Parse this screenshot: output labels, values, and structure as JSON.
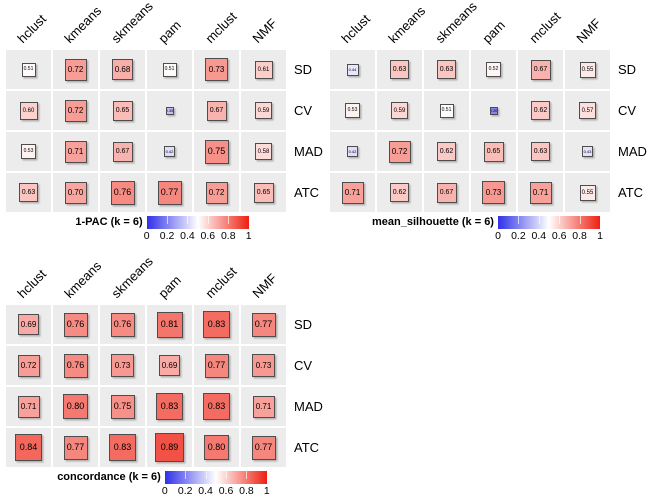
{
  "figure": {
    "columns": [
      "hclust",
      "kmeans",
      "skmeans",
      "pam",
      "mclust",
      "NMF"
    ],
    "rows": [
      "SD",
      "CV",
      "MAD",
      "ATC"
    ],
    "panels": [
      {
        "id": "1-pac",
        "title": "1-PAC (k = 6)",
        "grid_position": "top-left",
        "values": [
          [
            0.51,
            0.72,
            0.68,
            0.51,
            0.73,
            0.61
          ],
          [
            0.6,
            0.72,
            0.65,
            0.35,
            0.67,
            0.59
          ],
          [
            0.53,
            0.71,
            0.67,
            0.42,
            0.75,
            0.58
          ],
          [
            0.63,
            0.7,
            0.76,
            0.77,
            0.72,
            0.65
          ]
        ]
      },
      {
        "id": "mean-silhouette",
        "title": "mean_silhouette (k = 6)",
        "grid_position": "top-right",
        "values": [
          [
            0.44,
            0.63,
            0.63,
            0.52,
            0.67,
            0.55
          ],
          [
            0.53,
            0.59,
            0.51,
            0.2,
            0.62,
            0.57
          ],
          [
            0.42,
            0.72,
            0.62,
            0.65,
            0.63,
            0.43
          ],
          [
            0.71,
            0.62,
            0.67,
            0.73,
            0.71,
            0.55
          ]
        ]
      },
      {
        "id": "concordance",
        "title": "concordance (k = 6)",
        "grid_position": "bottom-left",
        "values": [
          [
            0.69,
            0.76,
            0.76,
            0.81,
            0.83,
            0.77
          ],
          [
            0.72,
            0.76,
            0.73,
            0.69,
            0.77,
            0.73
          ],
          [
            0.71,
            0.8,
            0.75,
            0.83,
            0.83,
            0.71
          ],
          [
            0.84,
            0.77,
            0.83,
            0.89,
            0.8,
            0.77
          ]
        ]
      }
    ],
    "legend": {
      "tick_labels": [
        "0",
        "0.2",
        "0.4",
        "0.6",
        "0.8",
        "1"
      ],
      "range": [
        0,
        1
      ]
    },
    "colors": {
      "scale_low": "#3030e9",
      "scale_mid": "#ffffff",
      "scale_high": "#ee2010",
      "cell_bg": "#ececec",
      "box_border": "#4d4d4d",
      "text": "#000000",
      "background": "#ffffff"
    }
  },
  "chart_data": [
    {
      "type": "heatmap",
      "title": "1-PAC (k = 6)",
      "x": [
        "hclust",
        "kmeans",
        "skmeans",
        "pam",
        "mclust",
        "NMF"
      ],
      "y": [
        "SD",
        "CV",
        "MAD",
        "ATC"
      ],
      "values": [
        [
          0.51,
          0.72,
          0.68,
          0.51,
          0.73,
          0.61
        ],
        [
          0.6,
          0.72,
          0.65,
          0.35,
          0.67,
          0.59
        ],
        [
          0.53,
          0.71,
          0.67,
          0.42,
          0.75,
          0.58
        ],
        [
          0.63,
          0.7,
          0.76,
          0.77,
          0.72,
          0.65
        ]
      ],
      "colorscale": {
        "0": "blue",
        "0.5": "white",
        "1": "red"
      },
      "value_range": [
        0,
        1
      ],
      "legend_ticks": [
        0,
        0.2,
        0.4,
        0.6,
        0.8,
        1
      ],
      "legend_position": "bottom",
      "note": "square size and color proportional to value"
    },
    {
      "type": "heatmap",
      "title": "mean_silhouette (k = 6)",
      "x": [
        "hclust",
        "kmeans",
        "skmeans",
        "pam",
        "mclust",
        "NMF"
      ],
      "y": [
        "SD",
        "CV",
        "MAD",
        "ATC"
      ],
      "values": [
        [
          0.44,
          0.63,
          0.63,
          0.52,
          0.67,
          0.55
        ],
        [
          0.53,
          0.59,
          0.51,
          0.2,
          0.62,
          0.57
        ],
        [
          0.42,
          0.72,
          0.62,
          0.65,
          0.63,
          0.43
        ],
        [
          0.71,
          0.62,
          0.67,
          0.73,
          0.71,
          0.55
        ]
      ],
      "colorscale": {
        "0": "blue",
        "0.5": "white",
        "1": "red"
      },
      "value_range": [
        0,
        1
      ],
      "legend_ticks": [
        0,
        0.2,
        0.4,
        0.6,
        0.8,
        1
      ],
      "legend_position": "bottom",
      "note": "square size and color proportional to value"
    },
    {
      "type": "heatmap",
      "title": "concordance (k = 6)",
      "x": [
        "hclust",
        "kmeans",
        "skmeans",
        "pam",
        "mclust",
        "NMF"
      ],
      "y": [
        "SD",
        "CV",
        "MAD",
        "ATC"
      ],
      "values": [
        [
          0.69,
          0.76,
          0.76,
          0.81,
          0.83,
          0.77
        ],
        [
          0.72,
          0.76,
          0.73,
          0.69,
          0.77,
          0.73
        ],
        [
          0.71,
          0.8,
          0.75,
          0.83,
          0.83,
          0.71
        ],
        [
          0.84,
          0.77,
          0.83,
          0.89,
          0.8,
          0.77
        ]
      ],
      "colorscale": {
        "0": "blue",
        "0.5": "white",
        "1": "red"
      },
      "value_range": [
        0,
        1
      ],
      "legend_ticks": [
        0,
        0.2,
        0.4,
        0.6,
        0.8,
        1
      ],
      "legend_position": "bottom",
      "note": "square size and color proportional to value"
    }
  ]
}
